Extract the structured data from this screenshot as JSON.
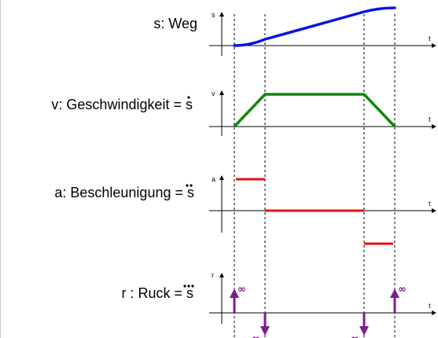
{
  "colors": {
    "weg": "#0a14e6",
    "geschwindigkeit": "#0a8a0a",
    "beschleunigung": "#e81010",
    "ruck": "#7b1f8c",
    "axis": "#000000",
    "guide": "#000000"
  },
  "panels": {
    "weg": {
      "label": "s: Weg",
      "y_label": "s",
      "x_label": "t"
    },
    "geschwindigkeit": {
      "label": "v: Geschwindigkeit = s",
      "y_label": "v",
      "x_label": "t",
      "dots": 1
    },
    "beschleunigung": {
      "label": "a: Beschleunigung = s",
      "y_label": "a",
      "x_label": "t",
      "dots": 2
    },
    "ruck": {
      "label": "r : Ruck = s",
      "y_label": "r",
      "x_label": "t",
      "dots": 3,
      "infinity": "∞"
    }
  }
}
